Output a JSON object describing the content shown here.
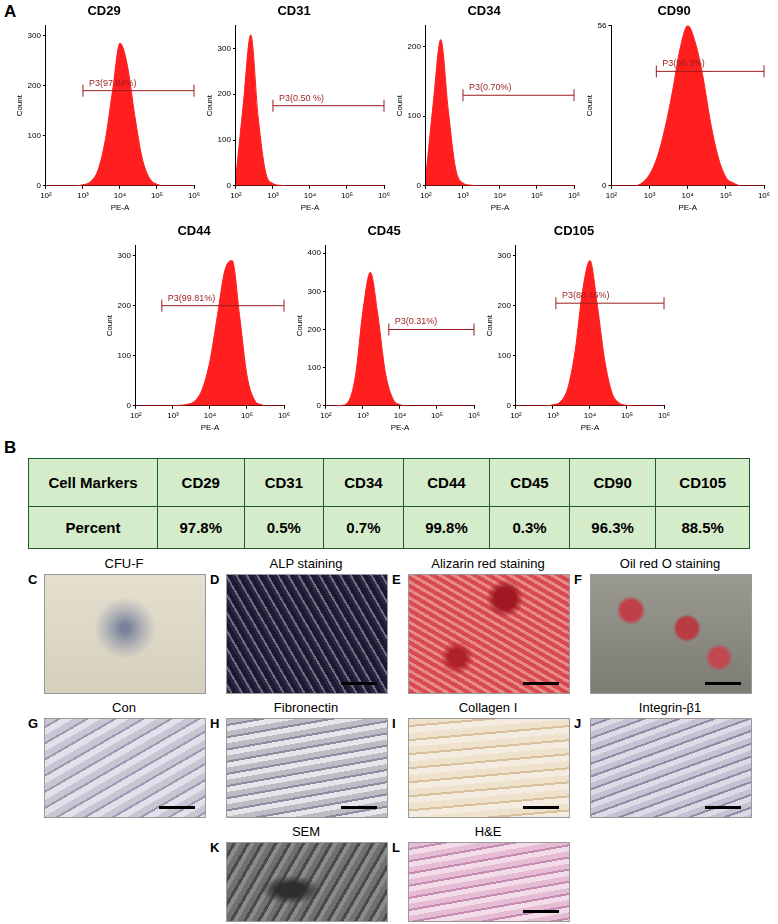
{
  "histogram_panel_letter": "A",
  "chart_data": [
    {
      "type": "area",
      "title": "CD29",
      "x_label": "PE-A",
      "y_label": "Count",
      "color": "#ff1f1f",
      "log": "x",
      "grid": false,
      "x": [
        100,
        158.5,
        251.2,
        398.1,
        631,
        1000,
        1584.9,
        2511.9,
        3981.1,
        6309.6,
        10000,
        15849,
        25119,
        39811,
        63096,
        100000,
        158489,
        251189,
        398107,
        630957,
        1000000
      ],
      "values": [
        0,
        0,
        0,
        0,
        0,
        2,
        8,
        30,
        90,
        190,
        285,
        240,
        140,
        55,
        15,
        3,
        0,
        0,
        0,
        0,
        0
      ],
      "xlim": [
        100,
        1000000
      ],
      "xticks": [
        {
          "value": 100,
          "label": "10²"
        },
        {
          "value": 1000,
          "label": "10³"
        },
        {
          "value": 10000,
          "label": "10⁴"
        },
        {
          "value": 100000,
          "label": "10⁵"
        },
        {
          "value": 1000000,
          "label": "10⁶"
        }
      ],
      "ylim": [
        0,
        320
      ],
      "yticks": [
        0,
        100,
        200,
        300
      ],
      "gate": {
        "label": "P3(97.84%)",
        "x": [
          1000,
          1000000
        ],
        "y": 190
      }
    },
    {
      "type": "area",
      "title": "CD31",
      "x_label": "PE-A",
      "y_label": "Count",
      "color": "#ff1f1f",
      "log": "x",
      "grid": false,
      "x": [
        100,
        158.5,
        251.2,
        398.1,
        631,
        1000,
        1584.9,
        2511.9,
        3981.1,
        6309.6,
        10000,
        15849,
        25119,
        39811,
        63096,
        100000,
        158489,
        251189,
        398107,
        630957,
        1000000
      ],
      "values": [
        20,
        180,
        330,
        150,
        30,
        5,
        1,
        0,
        0,
        0,
        0,
        0,
        0,
        0,
        0,
        0,
        0,
        0,
        0,
        0,
        0
      ],
      "xlim": [
        100,
        1000000
      ],
      "xticks": [
        {
          "value": 100,
          "label": "10²"
        },
        {
          "value": 1000,
          "label": "10³"
        },
        {
          "value": 10000,
          "label": "10⁴"
        },
        {
          "value": 100000,
          "label": "10⁵"
        },
        {
          "value": 1000000,
          "label": "10⁶"
        }
      ],
      "ylim": [
        0,
        350
      ],
      "yticks": [
        0,
        100,
        200,
        300
      ],
      "gate": {
        "label": "P3(0.50 %)",
        "x": [
          1000,
          1000000
        ],
        "y": 175
      }
    },
    {
      "type": "area",
      "title": "CD34",
      "x_label": "PE-A",
      "y_label": "Count",
      "color": "#ff1f1f",
      "log": "x",
      "grid": false,
      "x": [
        100,
        158.5,
        251.2,
        398.1,
        631,
        1000,
        1584.9,
        2511.9,
        3981.1,
        6309.6,
        10000,
        15849,
        25119,
        39811,
        63096,
        100000,
        158489,
        251189,
        398107,
        630957,
        1000000
      ],
      "values": [
        15,
        120,
        210,
        110,
        25,
        4,
        1,
        0,
        0,
        0,
        0,
        0,
        0,
        0,
        0,
        0,
        0,
        0,
        0,
        0,
        0
      ],
      "xlim": [
        100,
        1000000
      ],
      "xticks": [
        {
          "value": 100,
          "label": "10²"
        },
        {
          "value": 1000,
          "label": "10³"
        },
        {
          "value": 10000,
          "label": "10⁴"
        },
        {
          "value": 100000,
          "label": "10⁵"
        },
        {
          "value": 1000000,
          "label": "10⁶"
        }
      ],
      "ylim": [
        0,
        230
      ],
      "yticks": [
        0,
        100,
        200
      ],
      "gate": {
        "label": "P3(0.70%)",
        "x": [
          1000,
          1000000
        ],
        "y": 130
      }
    },
    {
      "type": "area",
      "title": "CD90",
      "x_label": "PE-A",
      "y_label": "Count",
      "color": "#ff1f1f",
      "log": "x",
      "grid": false,
      "x": [
        100,
        158.5,
        251.2,
        398.1,
        631,
        1000,
        1584.9,
        2511.9,
        3981.1,
        6309.6,
        10000,
        15849,
        25119,
        39811,
        63096,
        100000,
        158489,
        251189,
        398107,
        630957,
        1000000
      ],
      "values": [
        0,
        0,
        0,
        0,
        1,
        4,
        10,
        20,
        33,
        48,
        56,
        50,
        38,
        22,
        10,
        3,
        1,
        0,
        0,
        0,
        0
      ],
      "xlim": [
        100,
        1000000
      ],
      "xticks": [
        {
          "value": 100,
          "label": "10²"
        },
        {
          "value": 1000,
          "label": "10³"
        },
        {
          "value": 10000,
          "label": "10⁴"
        },
        {
          "value": 100000,
          "label": "10⁵"
        },
        {
          "value": 1000000,
          "label": "10⁶"
        }
      ],
      "ylim": [
        0,
        56
      ],
      "yticks": [
        0,
        56
      ],
      "gate": {
        "label": "P3(96.3%)",
        "x": [
          1500,
          1000000
        ],
        "y": 40
      }
    },
    {
      "type": "area",
      "title": "CD44",
      "x_label": "PE-A",
      "y_label": "Count",
      "color": "#ff1f1f",
      "log": "x",
      "grid": false,
      "x": [
        100,
        158.5,
        251.2,
        398.1,
        631,
        1000,
        1584.9,
        2511.9,
        3981.1,
        6309.6,
        10000,
        15849,
        25119,
        39811,
        63096,
        100000,
        158489,
        251189,
        398107,
        630957,
        1000000
      ],
      "values": [
        0,
        0,
        0,
        0,
        0,
        0,
        1,
        3,
        10,
        35,
        90,
        180,
        270,
        290,
        180,
        60,
        12,
        2,
        0,
        0,
        0
      ],
      "xlim": [
        100,
        1000000
      ],
      "xticks": [
        {
          "value": 100,
          "label": "10²"
        },
        {
          "value": 1000,
          "label": "10³"
        },
        {
          "value": 10000,
          "label": "10⁴"
        },
        {
          "value": 100000,
          "label": "10⁵"
        },
        {
          "value": 1000000,
          "label": "10⁶"
        }
      ],
      "ylim": [
        0,
        320
      ],
      "yticks": [
        0,
        100,
        200,
        300
      ],
      "gate": {
        "label": "P3(99.81%)",
        "x": [
          500,
          1000000
        ],
        "y": 200
      }
    },
    {
      "type": "area",
      "title": "CD45",
      "x_label": "PE-A",
      "y_label": "Count",
      "color": "#ff1f1f",
      "log": "x",
      "grid": false,
      "x": [
        100,
        158.5,
        251.2,
        398.1,
        631,
        1000,
        1584.9,
        2511.9,
        3981.1,
        6309.6,
        10000,
        15849,
        25119,
        39811,
        63096,
        100000,
        158489,
        251189,
        398107,
        630957,
        1000000
      ],
      "values": [
        0,
        0,
        1,
        10,
        80,
        250,
        350,
        240,
        90,
        20,
        3,
        0,
        0,
        0,
        0,
        0,
        0,
        0,
        0,
        0,
        0
      ],
      "xlim": [
        100,
        1000000
      ],
      "xticks": [
        {
          "value": 100,
          "label": "10²"
        },
        {
          "value": 1000,
          "label": "10³"
        },
        {
          "value": 10000,
          "label": "10⁴"
        },
        {
          "value": 100000,
          "label": "10⁵"
        },
        {
          "value": 1000000,
          "label": "10⁶"
        }
      ],
      "ylim": [
        0,
        420
      ],
      "yticks": [
        0,
        100,
        200,
        300,
        400
      ],
      "gate": {
        "label": "P3(0.31%)",
        "x": [
          5000,
          1000000
        ],
        "y": 200
      }
    },
    {
      "type": "area",
      "title": "CD105",
      "x_label": "PE-A",
      "y_label": "Count",
      "color": "#ff1f1f",
      "log": "x",
      "grid": false,
      "x": [
        100,
        158.5,
        251.2,
        398.1,
        631,
        1000,
        1584.9,
        2511.9,
        3981.1,
        6309.6,
        10000,
        15849,
        25119,
        39811,
        63096,
        100000,
        158489,
        251189,
        398107,
        630957,
        1000000
      ],
      "values": [
        0,
        0,
        0,
        0,
        0,
        2,
        8,
        35,
        110,
        230,
        290,
        200,
        90,
        25,
        5,
        1,
        0,
        0,
        0,
        0,
        0
      ],
      "xlim": [
        100,
        1000000
      ],
      "xticks": [
        {
          "value": 100,
          "label": "10²"
        },
        {
          "value": 1000,
          "label": "10³"
        },
        {
          "value": 10000,
          "label": "10⁴"
        },
        {
          "value": 100000,
          "label": "10⁵"
        },
        {
          "value": 1000000,
          "label": "10⁶"
        }
      ],
      "ylim": [
        0,
        320
      ],
      "yticks": [
        0,
        100,
        200,
        300
      ],
      "gate": {
        "label": "P3(88.46%)",
        "x": [
          1200,
          1000000
        ],
        "y": 205
      }
    }
  ],
  "table": {
    "letter": "B",
    "rows": [
      [
        "Cell Markers",
        "CD29",
        "CD31",
        "CD34",
        "CD44",
        "CD45",
        "CD90",
        "CD105"
      ],
      [
        "Percent",
        "97.8%",
        "0.5%",
        "0.7%",
        "99.8%",
        "0.3%",
        "96.3%",
        "88.5%"
      ]
    ]
  },
  "images": [
    {
      "letter": "C",
      "title": "CFU-F"
    },
    {
      "letter": "D",
      "title": "ALP staining"
    },
    {
      "letter": "E",
      "title": "Alizarin red staining"
    },
    {
      "letter": "F",
      "title": "Oil red O staining"
    },
    {
      "letter": "G",
      "title": "Con"
    },
    {
      "letter": "H",
      "title": "Fibronectin"
    },
    {
      "letter": "I",
      "title": "Collagen I"
    },
    {
      "letter": "J",
      "title": "Integrin-β1"
    },
    {
      "letter": "K",
      "title": "SEM"
    },
    {
      "letter": "L",
      "title": "H&E"
    }
  ]
}
